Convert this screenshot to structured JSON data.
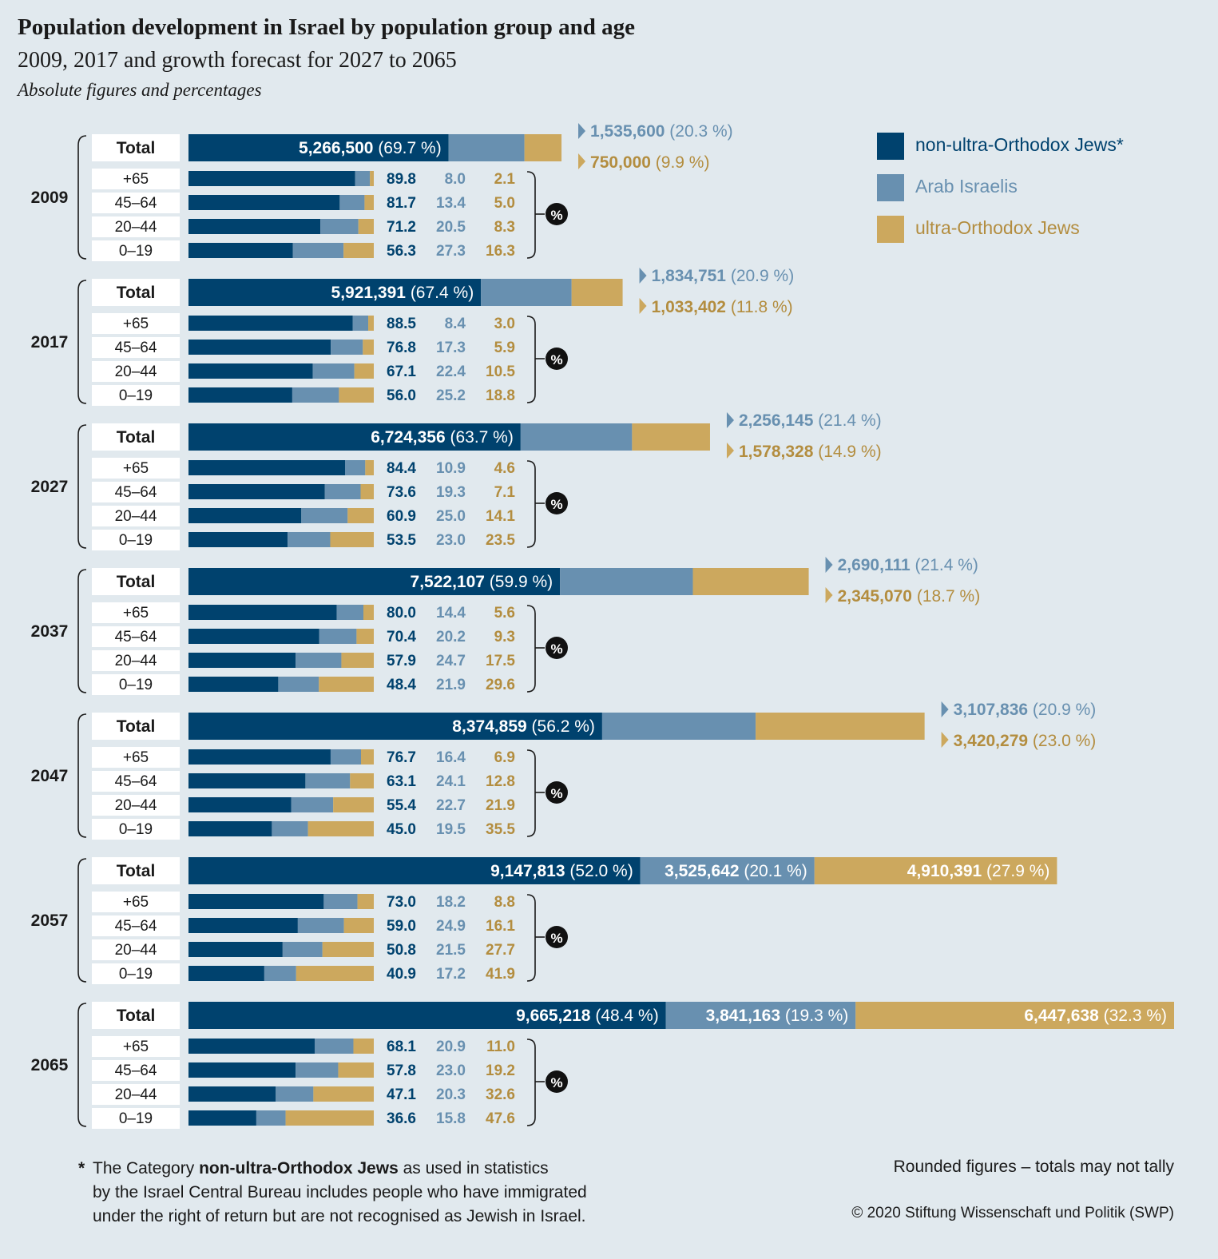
{
  "title": "Population development in Israel by population group and age",
  "subtitle": "2009, 2017 and growth forecast for 2027 to 2065",
  "subtitle2": "Absolute figures and percentages",
  "colors": {
    "non_orthodox": "#00426e",
    "arab": "#6890b0",
    "orthodox": "#cca85e",
    "background": "#e1e9ee"
  },
  "legend": [
    {
      "label": "non-ultra-Orthodox Jews*",
      "color": "#00426e"
    },
    {
      "label": "Arab Israelis",
      "color": "#6890b0"
    },
    {
      "label": "ultra-Orthodox Jews",
      "color": "#cca85e"
    }
  ],
  "footnote": {
    "star": "*",
    "line1_pre": "The Category ",
    "line1_bold": "non-ultra-Orthodox Jews",
    "line1_post": " as used in statistics",
    "line2": "by the Israel Central Bureau includes people who have immigrated",
    "line3": "under the right of return but are not recognised as Jewish in Israel."
  },
  "note_right": "Rounded figures – totals may not tally",
  "copyright": "© 2020 Stiftung Wissenschaft und Politik (SWP)",
  "chart_data": {
    "type": "bar",
    "total_label": "Total",
    "percent_symbol": "%",
    "series_names": [
      "non-ultra-Orthodox Jews*",
      "Arab Israelis",
      "ultra-Orthodox Jews"
    ],
    "years": [
      {
        "year": "2009",
        "total": [
          {
            "value": 5266500,
            "label": "5,266,500",
            "pct": "(69.7 %)"
          },
          {
            "value": 1535600,
            "label": "1,535,600",
            "pct": "(20.3 %)"
          },
          {
            "value": 750000,
            "label": "750,000",
            "pct": "(9.9 %)"
          }
        ],
        "ages": [
          {
            "age": "+65",
            "values": [
              "89.8",
              "8.0",
              "2.1"
            ]
          },
          {
            "age": "45–64",
            "values": [
              "81.7",
              "13.4",
              "5.0"
            ]
          },
          {
            "age": "20–44",
            "values": [
              "71.2",
              "20.5",
              "8.3"
            ]
          },
          {
            "age": "0–19",
            "values": [
              "56.3",
              "27.3",
              "16.3"
            ]
          }
        ]
      },
      {
        "year": "2017",
        "total": [
          {
            "value": 5921391,
            "label": "5,921,391",
            "pct": "(67.4 %)"
          },
          {
            "value": 1834751,
            "label": "1,834,751",
            "pct": "(20.9 %)"
          },
          {
            "value": 1033402,
            "label": "1,033,402",
            "pct": "(11.8 %)"
          }
        ],
        "ages": [
          {
            "age": "+65",
            "values": [
              "88.5",
              "8.4",
              "3.0"
            ]
          },
          {
            "age": "45–64",
            "values": [
              "76.8",
              "17.3",
              "5.9"
            ]
          },
          {
            "age": "20–44",
            "values": [
              "67.1",
              "22.4",
              "10.5"
            ]
          },
          {
            "age": "0–19",
            "values": [
              "56.0",
              "25.2",
              "18.8"
            ]
          }
        ]
      },
      {
        "year": "2027",
        "total": [
          {
            "value": 6724356,
            "label": "6,724,356",
            "pct": "(63.7 %)"
          },
          {
            "value": 2256145,
            "label": "2,256,145",
            "pct": "(21.4 %)"
          },
          {
            "value": 1578328,
            "label": "1,578,328",
            "pct": "(14.9 %)"
          }
        ],
        "ages": [
          {
            "age": "+65",
            "values": [
              "84.4",
              "10.9",
              "4.6"
            ]
          },
          {
            "age": "45–64",
            "values": [
              "73.6",
              "19.3",
              "7.1"
            ]
          },
          {
            "age": "20–44",
            "values": [
              "60.9",
              "25.0",
              "14.1"
            ]
          },
          {
            "age": "0–19",
            "values": [
              "53.5",
              "23.0",
              "23.5"
            ]
          }
        ]
      },
      {
        "year": "2037",
        "total": [
          {
            "value": 7522107,
            "label": "7,522,107",
            "pct": "(59.9 %)"
          },
          {
            "value": 2690111,
            "label": "2,690,111",
            "pct": "(21.4 %)"
          },
          {
            "value": 2345070,
            "label": "2,345,070",
            "pct": "(18.7 %)"
          }
        ],
        "ages": [
          {
            "age": "+65",
            "values": [
              "80.0",
              "14.4",
              "5.6"
            ]
          },
          {
            "age": "45–64",
            "values": [
              "70.4",
              "20.2",
              "9.3"
            ]
          },
          {
            "age": "20–44",
            "values": [
              "57.9",
              "24.7",
              "17.5"
            ]
          },
          {
            "age": "0–19",
            "values": [
              "48.4",
              "21.9",
              "29.6"
            ]
          }
        ]
      },
      {
        "year": "2047",
        "total": [
          {
            "value": 8374859,
            "label": "8,374,859",
            "pct": "(56.2 %)"
          },
          {
            "value": 3107836,
            "label": "3,107,836",
            "pct": "(20.9 %)"
          },
          {
            "value": 3420279,
            "label": "3,420,279",
            "pct": "(23.0 %)"
          }
        ],
        "ages": [
          {
            "age": "+65",
            "values": [
              "76.7",
              "16.4",
              "6.9"
            ]
          },
          {
            "age": "45–64",
            "values": [
              "63.1",
              "24.1",
              "12.8"
            ]
          },
          {
            "age": "20–44",
            "values": [
              "55.4",
              "22.7",
              "21.9"
            ]
          },
          {
            "age": "0–19",
            "values": [
              "45.0",
              "19.5",
              "35.5"
            ]
          }
        ]
      },
      {
        "year": "2057",
        "total": [
          {
            "value": 9147813,
            "label": "9,147,813",
            "pct": "(52.0 %)"
          },
          {
            "value": 3525642,
            "label": "3,525,642",
            "pct": "(20.1 %)"
          },
          {
            "value": 4910391,
            "label": "4,910,391",
            "pct": "(27.9 %)"
          }
        ],
        "ages": [
          {
            "age": "+65",
            "values": [
              "73.0",
              "18.2",
              "8.8"
            ]
          },
          {
            "age": "45–64",
            "values": [
              "59.0",
              "24.9",
              "16.1"
            ]
          },
          {
            "age": "20–44",
            "values": [
              "50.8",
              "21.5",
              "27.7"
            ]
          },
          {
            "age": "0–19",
            "values": [
              "40.9",
              "17.2",
              "41.9"
            ]
          }
        ]
      },
      {
        "year": "2065",
        "total": [
          {
            "value": 9665218,
            "label": "9,665,218",
            "pct": "(48.4 %)"
          },
          {
            "value": 3841163,
            "label": "3,841,163",
            "pct": "(19.3 %)"
          },
          {
            "value": 6447638,
            "label": "6,447,638",
            "pct": "(32.3 %)"
          }
        ],
        "ages": [
          {
            "age": "+65",
            "values": [
              "68.1",
              "20.9",
              "11.0"
            ]
          },
          {
            "age": "45–64",
            "values": [
              "57.8",
              "23.0",
              "19.2"
            ]
          },
          {
            "age": "20–44",
            "values": [
              "47.1",
              "20.3",
              "32.6"
            ]
          },
          {
            "age": "0–19",
            "values": [
              "36.6",
              "15.8",
              "47.6"
            ]
          }
        ]
      }
    ]
  }
}
